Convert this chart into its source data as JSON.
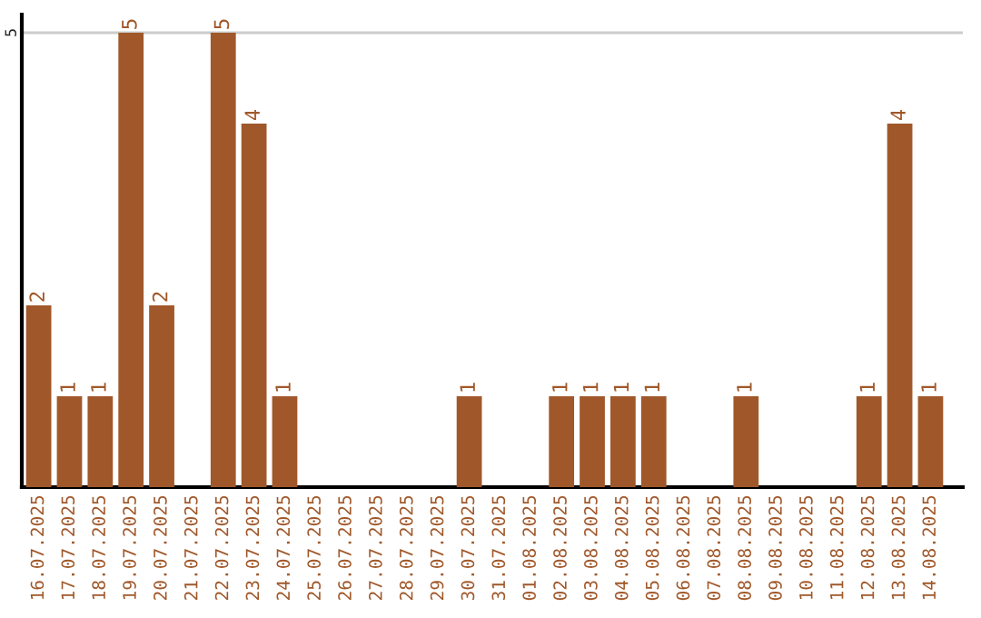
{
  "chart_data": {
    "type": "bar",
    "categories": [
      "16.07.2025",
      "17.07.2025",
      "18.07.2025",
      "19.07.2025",
      "20.07.2025",
      "21.07.2025",
      "22.07.2025",
      "23.07.2025",
      "24.07.2025",
      "25.07.2025",
      "26.07.2025",
      "27.07.2025",
      "28.07.2025",
      "29.07.2025",
      "30.07.2025",
      "31.07.2025",
      "01.08.2025",
      "02.08.2025",
      "03.08.2025",
      "04.08.2025",
      "05.08.2025",
      "06.08.2025",
      "07.08.2025",
      "08.08.2025",
      "09.08.2025",
      "10.08.2025",
      "11.08.2025",
      "12.08.2025",
      "13.08.2025",
      "14.08.2025"
    ],
    "values": [
      2,
      1,
      1,
      5,
      2,
      0,
      5,
      4,
      1,
      0,
      0,
      0,
      0,
      0,
      1,
      0,
      0,
      1,
      1,
      1,
      1,
      0,
      0,
      1,
      0,
      0,
      0,
      1,
      4,
      1
    ],
    "value_labels": [
      "2",
      "1",
      "1",
      "5",
      "2",
      null,
      "5",
      "4",
      "1",
      null,
      null,
      null,
      null,
      null,
      "1",
      null,
      null,
      "1",
      "1",
      "1",
      "1",
      null,
      null,
      "1",
      null,
      null,
      null,
      "1",
      "4",
      "1"
    ],
    "color": "#a0582a",
    "ylim": [
      0,
      5.2
    ],
    "yticks": [
      5
    ],
    "grid": "y"
  }
}
